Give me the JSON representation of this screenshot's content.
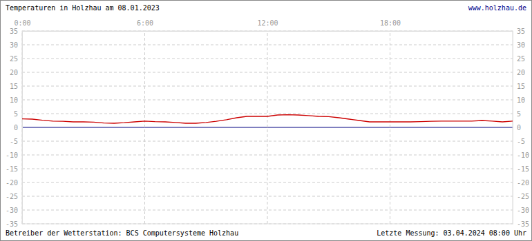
{
  "chart_data": {
    "type": "line",
    "title": "Temperaturen in Holzhau am 08.01.2023",
    "annotations": [
      "www.holzhau.de",
      "Betreiber der Wetterstation: BCS Computersysteme Holzhau",
      "Letzte Messung: 03.04.2024 08:00 Uhr"
    ],
    "x": [
      0,
      0.5,
      1,
      1.5,
      2,
      2.5,
      3,
      3.5,
      4,
      4.5,
      5,
      5.5,
      6,
      6.5,
      7,
      7.5,
      8,
      8.5,
      9,
      9.5,
      10,
      10.5,
      11,
      11.5,
      12,
      12.5,
      13,
      13.5,
      14,
      14.5,
      15,
      15.5,
      16,
      16.5,
      17,
      17.5,
      18,
      18.5,
      19,
      19.5,
      20,
      20.5,
      21,
      21.5,
      22,
      22.5,
      23,
      23.5,
      24
    ],
    "values": [
      3.1,
      3.0,
      2.6,
      2.3,
      2.2,
      2.0,
      2.0,
      1.9,
      1.6,
      1.5,
      1.7,
      2.0,
      2.3,
      2.1,
      2.0,
      1.8,
      1.5,
      1.5,
      1.8,
      2.2,
      2.8,
      3.5,
      4.0,
      4.0,
      4.0,
      4.5,
      4.6,
      4.5,
      4.3,
      4.0,
      3.9,
      3.5,
      3.0,
      2.5,
      2.0,
      2.0,
      2.0,
      2.0,
      2.0,
      2.1,
      2.2,
      2.3,
      2.3,
      2.3,
      2.3,
      2.5,
      2.3,
      2.0,
      2.3
    ],
    "color": "#cc0000",
    "xlim": [
      0,
      24
    ],
    "xticks": [
      {
        "value": 0,
        "label": "0:00"
      },
      {
        "value": 6,
        "label": "6:00"
      },
      {
        "value": 12,
        "label": "12:00"
      },
      {
        "value": 18,
        "label": "18:00"
      }
    ],
    "ylim": [
      -35,
      35
    ],
    "yticks": [
      -35,
      -30,
      -25,
      -20,
      -15,
      -10,
      -5,
      0,
      5,
      10,
      15,
      20,
      25,
      30,
      35
    ],
    "grid": true
  }
}
